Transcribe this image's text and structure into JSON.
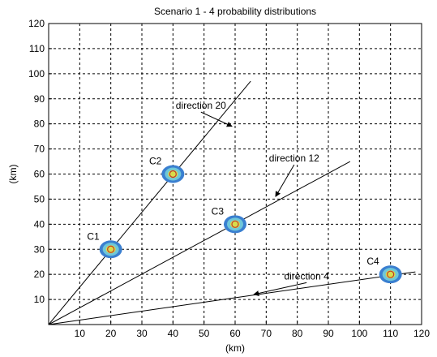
{
  "chart_data": {
    "type": "scatter",
    "title": "Scenario 1 - 4 probability distributions",
    "xlabel": "(km)",
    "ylabel": "(km)",
    "xlim": [
      0,
      120
    ],
    "ylim": [
      0,
      120
    ],
    "xticks": [
      10,
      20,
      30,
      40,
      50,
      60,
      70,
      80,
      90,
      100,
      110,
      120
    ],
    "yticks": [
      10,
      20,
      30,
      40,
      50,
      60,
      70,
      80,
      90,
      100,
      110,
      120
    ],
    "grid": true,
    "points": [
      {
        "label": "C1",
        "x": 20,
        "y": 30
      },
      {
        "label": "C2",
        "x": 40,
        "y": 60
      },
      {
        "label": "C3",
        "x": 60,
        "y": 40
      },
      {
        "label": "C4",
        "x": 110,
        "y": 20
      }
    ],
    "lines": [
      {
        "name": "direction 20",
        "x": [
          0,
          65
        ],
        "y": [
          0,
          97
        ]
      },
      {
        "name": "direction 12",
        "x": [
          0,
          97
        ],
        "y": [
          0,
          65
        ]
      },
      {
        "name": "direction 4",
        "x": [
          0,
          118
        ],
        "y": [
          0,
          21
        ]
      }
    ],
    "annotations": [
      {
        "text": "direction 20",
        "x": 49,
        "y": 86,
        "arrow_to": [
          59,
          79
        ]
      },
      {
        "text": "direction 12",
        "x": 79,
        "y": 65,
        "arrow_to": [
          73,
          51
        ]
      },
      {
        "text": "direction 4",
        "x": 83,
        "y": 18,
        "arrow_to": [
          66,
          12
        ]
      }
    ],
    "colors": {
      "axes": "#000000",
      "grid": "#000000",
      "ellipse_outer": "#3a7fd0",
      "ellipse_mid": "#6fc7d8",
      "ellipse_inner": "#d9dc4a",
      "center": "#c0392b"
    }
  }
}
